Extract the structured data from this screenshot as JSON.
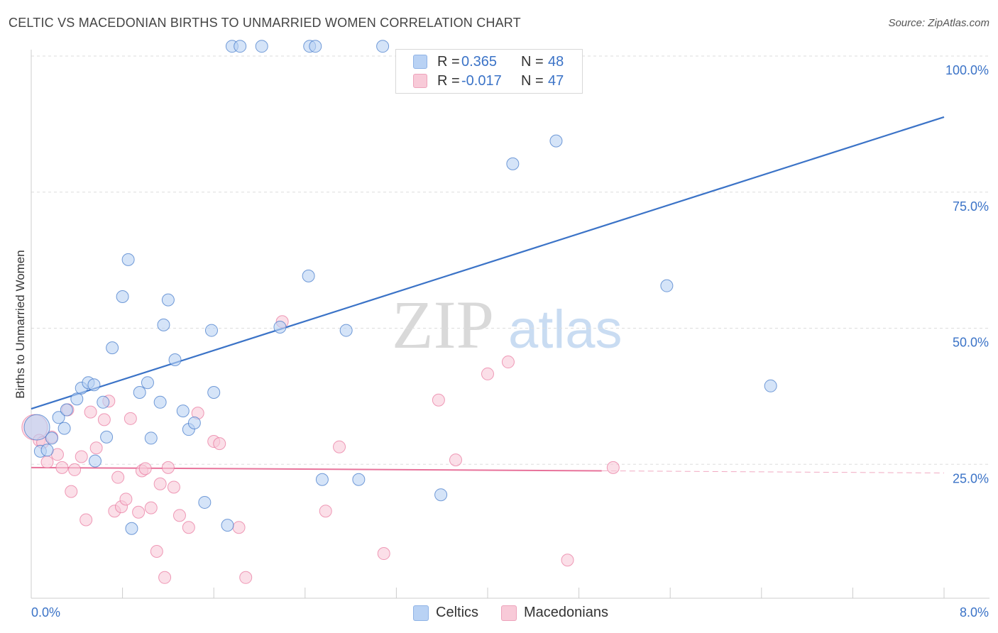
{
  "title": "CELTIC VS MACEDONIAN BIRTHS TO UNMARRIED WOMEN CORRELATION CHART",
  "source": "Source: ZipAtlas.com",
  "watermark": {
    "zip": "ZIP",
    "atlas": "atlas"
  },
  "legend": {
    "r_label": "R =",
    "n_label": "N =",
    "rows": [
      {
        "r": "0.365",
        "n": "48",
        "color": "#8fb3e6"
      },
      {
        "r": "-0.017",
        "n": "47",
        "color": "#eda3bb"
      }
    ]
  },
  "bottom_legend": {
    "series1": "Celtics",
    "series2": "Macedonians"
  },
  "chart_data": {
    "type": "scatter",
    "title": "CELTIC VS MACEDONIAN BIRTHS TO UNMARRIED WOMEN CORRELATION CHART",
    "xlabel": "",
    "ylabel": "Births to Unmarried Women",
    "xlim": [
      0,
      8
    ],
    "ylim": [
      0,
      100
    ],
    "x_tick_labels": [
      "0.0%",
      "8.0%"
    ],
    "y_ticks": [
      25,
      50,
      75,
      100
    ],
    "y_tick_labels": [
      "25.0%",
      "50.0%",
      "75.0%",
      "100.0%"
    ],
    "grid": "horizontal dashed",
    "legend_placement": "top-center",
    "series": [
      {
        "name": "Celtics",
        "color": "#3b73c7",
        "fill": "#b9d2f4",
        "r": 0.365,
        "n": 48,
        "trend": {
          "x": [
            0.0,
            8.0
          ],
          "y": [
            35.2,
            88.8
          ]
        },
        "points": [
          [
            0.05,
            31.8
          ],
          [
            0.08,
            27.4
          ],
          [
            0.14,
            27.6
          ],
          [
            0.18,
            29.8
          ],
          [
            0.24,
            33.6
          ],
          [
            0.29,
            31.6
          ],
          [
            0.31,
            35.0
          ],
          [
            0.4,
            37.0
          ],
          [
            0.44,
            39.0
          ],
          [
            0.5,
            40.0
          ],
          [
            0.55,
            39.6
          ],
          [
            0.56,
            25.6
          ],
          [
            0.63,
            36.4
          ],
          [
            0.66,
            30.0
          ],
          [
            0.71,
            46.4
          ],
          [
            0.8,
            55.8
          ],
          [
            0.85,
            62.6
          ],
          [
            0.88,
            13.2
          ],
          [
            0.95,
            38.2
          ],
          [
            1.02,
            40.0
          ],
          [
            1.05,
            29.8
          ],
          [
            1.13,
            36.4
          ],
          [
            1.16,
            50.6
          ],
          [
            1.2,
            55.2
          ],
          [
            1.26,
            44.2
          ],
          [
            1.33,
            34.8
          ],
          [
            1.38,
            31.4
          ],
          [
            1.43,
            32.6
          ],
          [
            1.52,
            18.0
          ],
          [
            1.58,
            49.6
          ],
          [
            1.6,
            38.2
          ],
          [
            1.72,
            13.8
          ],
          [
            1.76,
            101.8
          ],
          [
            1.83,
            101.8
          ],
          [
            2.02,
            101.8
          ],
          [
            2.18,
            50.2
          ],
          [
            2.43,
            59.6
          ],
          [
            2.44,
            101.8
          ],
          [
            2.49,
            101.8
          ],
          [
            2.55,
            22.2
          ],
          [
            2.76,
            49.6
          ],
          [
            2.87,
            22.2
          ],
          [
            3.08,
            101.8
          ],
          [
            3.59,
            19.4
          ],
          [
            4.22,
            80.2
          ],
          [
            4.6,
            84.4
          ],
          [
            5.57,
            57.8
          ],
          [
            6.48,
            39.4
          ]
        ]
      },
      {
        "name": "Macedonians",
        "color": "#e8739b",
        "fill": "#f8cad8",
        "r": -0.017,
        "n": 47,
        "trend": {
          "x": [
            0.0,
            5.0
          ],
          "y": [
            24.4,
            23.8
          ]
        },
        "trend_dashed": {
          "x": [
            5.0,
            8.0
          ],
          "y": [
            23.8,
            23.4
          ]
        },
        "points": [
          [
            0.03,
            31.8
          ],
          [
            0.07,
            29.4
          ],
          [
            0.1,
            29.0
          ],
          [
            0.14,
            25.4
          ],
          [
            0.18,
            30.0
          ],
          [
            0.23,
            26.8
          ],
          [
            0.27,
            24.4
          ],
          [
            0.32,
            35.0
          ],
          [
            0.35,
            20.0
          ],
          [
            0.38,
            24.0
          ],
          [
            0.44,
            26.4
          ],
          [
            0.48,
            14.8
          ],
          [
            0.52,
            34.6
          ],
          [
            0.57,
            28.0
          ],
          [
            0.64,
            33.2
          ],
          [
            0.68,
            36.6
          ],
          [
            0.73,
            16.4
          ],
          [
            0.76,
            22.6
          ],
          [
            0.79,
            17.2
          ],
          [
            0.83,
            18.6
          ],
          [
            0.87,
            33.4
          ],
          [
            0.94,
            16.2
          ],
          [
            0.97,
            23.8
          ],
          [
            1.0,
            24.2
          ],
          [
            1.05,
            17.0
          ],
          [
            1.1,
            9.0
          ],
          [
            1.13,
            21.4
          ],
          [
            1.17,
            4.2
          ],
          [
            1.2,
            24.4
          ],
          [
            1.25,
            20.8
          ],
          [
            1.3,
            15.6
          ],
          [
            1.38,
            13.4
          ],
          [
            1.46,
            34.4
          ],
          [
            1.6,
            29.2
          ],
          [
            1.65,
            28.8
          ],
          [
            1.82,
            13.4
          ],
          [
            1.88,
            4.2
          ],
          [
            2.2,
            51.2
          ],
          [
            2.58,
            16.4
          ],
          [
            2.7,
            28.2
          ],
          [
            3.09,
            8.6
          ],
          [
            3.57,
            36.8
          ],
          [
            3.72,
            25.8
          ],
          [
            4.0,
            41.6
          ],
          [
            4.18,
            43.8
          ],
          [
            4.7,
            7.4
          ],
          [
            5.1,
            24.4
          ]
        ]
      }
    ]
  }
}
